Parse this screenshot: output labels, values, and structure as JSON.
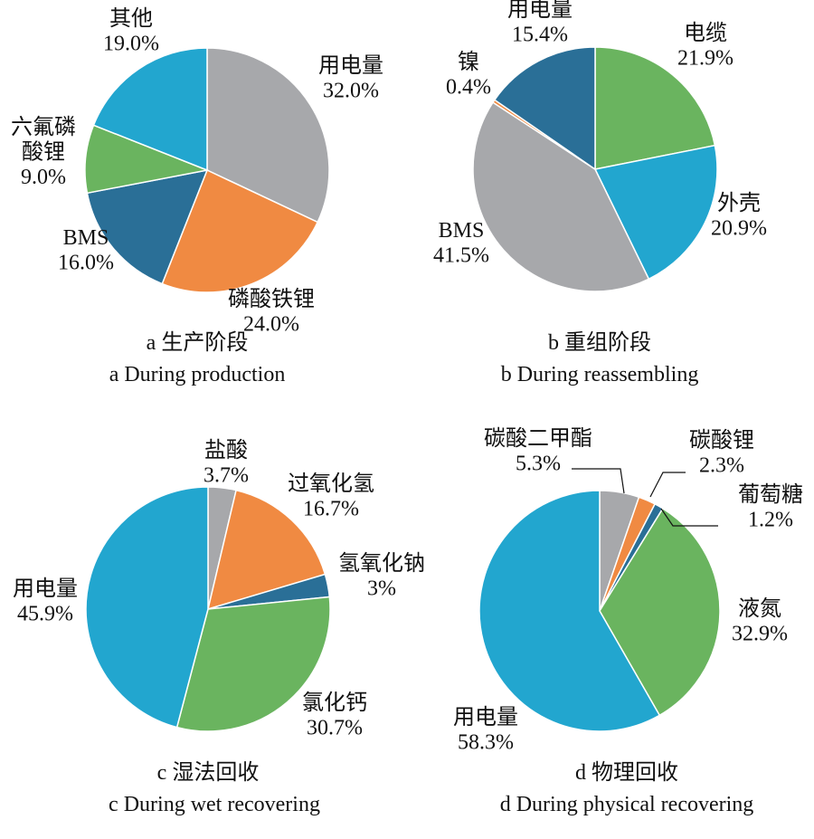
{
  "chart_data": [
    {
      "type": "pie",
      "caption_zh": "a 生产阶段",
      "caption_en": "a  During production",
      "slices": [
        {
          "label": "用电量",
          "value": 32.0,
          "pct": "32.0%",
          "color": "#a7a8ab"
        },
        {
          "label": "磷酸铁锂",
          "value": 24.0,
          "pct": "24.0%",
          "color": "#f08a42"
        },
        {
          "label": "BMS",
          "value": 16.0,
          "pct": "16.0%",
          "color": "#2a6f97"
        },
        {
          "label": "六氟磷\n酸锂",
          "value": 9.0,
          "pct": "9.0%",
          "color": "#6ab45f"
        },
        {
          "label": "其他",
          "value": 19.0,
          "pct": "19.0%",
          "color": "#22a6cf"
        }
      ]
    },
    {
      "type": "pie",
      "caption_zh": "b 重组阶段",
      "caption_en": "b  During  reassembling",
      "slices": [
        {
          "label": "电缆",
          "value": 21.9,
          "pct": "21.9%",
          "color": "#6ab45f"
        },
        {
          "label": "外壳",
          "value": 20.9,
          "pct": "20.9%",
          "color": "#22a6cf"
        },
        {
          "label": "BMS",
          "value": 41.5,
          "pct": "41.5%",
          "color": "#a7a8ab"
        },
        {
          "label": "镍",
          "value": 0.4,
          "pct": "0.4%",
          "color": "#f08a42"
        },
        {
          "label": "用电量",
          "value": 15.4,
          "pct": "15.4%",
          "color": "#2a6f97"
        }
      ]
    },
    {
      "type": "pie",
      "caption_zh": "c  湿法回收",
      "caption_en": "c  During wet recovering",
      "slices": [
        {
          "label": "盐酸",
          "value": 3.7,
          "pct": "3.7%",
          "color": "#a7a8ab"
        },
        {
          "label": "过氧化氢",
          "value": 16.7,
          "pct": "16.7%",
          "color": "#f08a42"
        },
        {
          "label": "氢氧化钠",
          "value": 3.0,
          "pct": "3%",
          "color": "#2a6f97"
        },
        {
          "label": "氯化钙",
          "value": 30.7,
          "pct": "30.7%",
          "color": "#6ab45f"
        },
        {
          "label": "用电量",
          "value": 45.9,
          "pct": "45.9%",
          "color": "#22a6cf"
        }
      ]
    },
    {
      "type": "pie",
      "caption_zh": "d  物理回收",
      "caption_en": "d  During physical recovering",
      "slices": [
        {
          "label": "碳酸二甲酯",
          "value": 5.3,
          "pct": "5.3%",
          "color": "#a7a8ab"
        },
        {
          "label": "碳酸锂",
          "value": 2.3,
          "pct": "2.3%",
          "color": "#f08a42"
        },
        {
          "label": "葡萄糖",
          "value": 1.2,
          "pct": "1.2%",
          "color": "#2a6f97"
        },
        {
          "label": "液氮",
          "value": 32.9,
          "pct": "32.9%",
          "color": "#6ab45f"
        },
        {
          "label": "用电量",
          "value": 58.3,
          "pct": "58.3%",
          "color": "#22a6cf"
        }
      ]
    }
  ]
}
